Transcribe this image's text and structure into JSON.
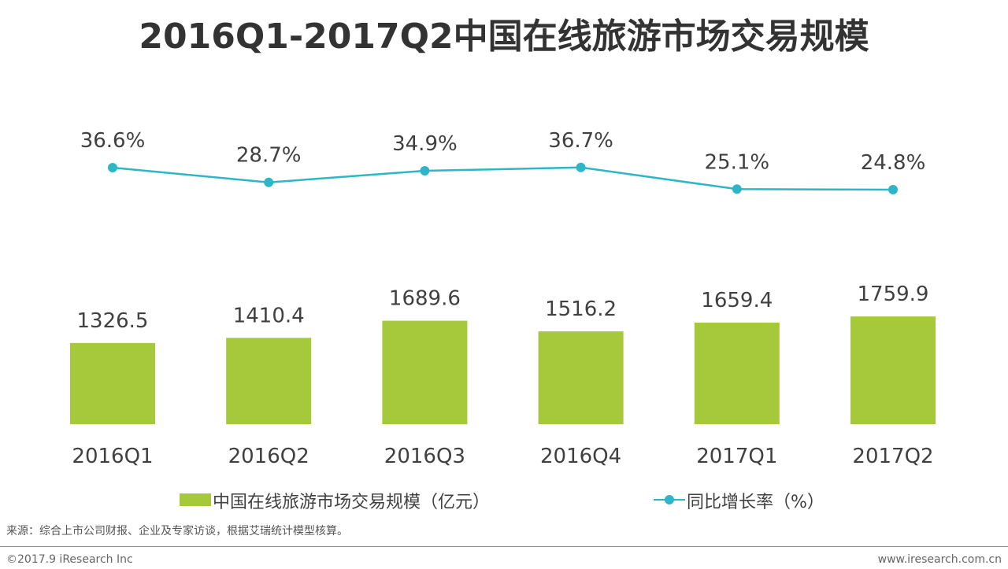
{
  "title": "2016Q1-2017Q2中国在线旅游市场交易规模",
  "colors": {
    "bar": "#a5c93a",
    "line": "#2db6c7"
  },
  "legend": {
    "bar_label": "中国在线旅游市场交易规模（亿元）",
    "line_label": "同比增长率（%）"
  },
  "source": "来源：综合上市公司财报、企业及专家访谈，根据艾瑞统计模型核算。",
  "copyright": "©2017.9 iResearch Inc",
  "website": "www.iresearch.com.cn",
  "chart_data": {
    "type": "bar",
    "categories": [
      "2016Q1",
      "2016Q2",
      "2016Q3",
      "2016Q4",
      "2017Q1",
      "2017Q2"
    ],
    "series": [
      {
        "name": "中国在线旅游市场交易规模（亿元）",
        "type": "bar",
        "values": [
          1326.5,
          1410.4,
          1689.6,
          1516.2,
          1659.4,
          1759.9
        ],
        "labels": [
          "1326.5",
          "1410.4",
          "1689.6",
          "1516.2",
          "1659.4",
          "1759.9"
        ]
      },
      {
        "name": "同比增长率（%）",
        "type": "line",
        "values": [
          36.6,
          28.7,
          34.9,
          36.7,
          25.1,
          24.8
        ],
        "labels": [
          "36.6%",
          "28.7%",
          "34.9%",
          "36.7%",
          "25.1%",
          "24.8%"
        ]
      }
    ],
    "grid": false,
    "legend_position": "bottom"
  }
}
